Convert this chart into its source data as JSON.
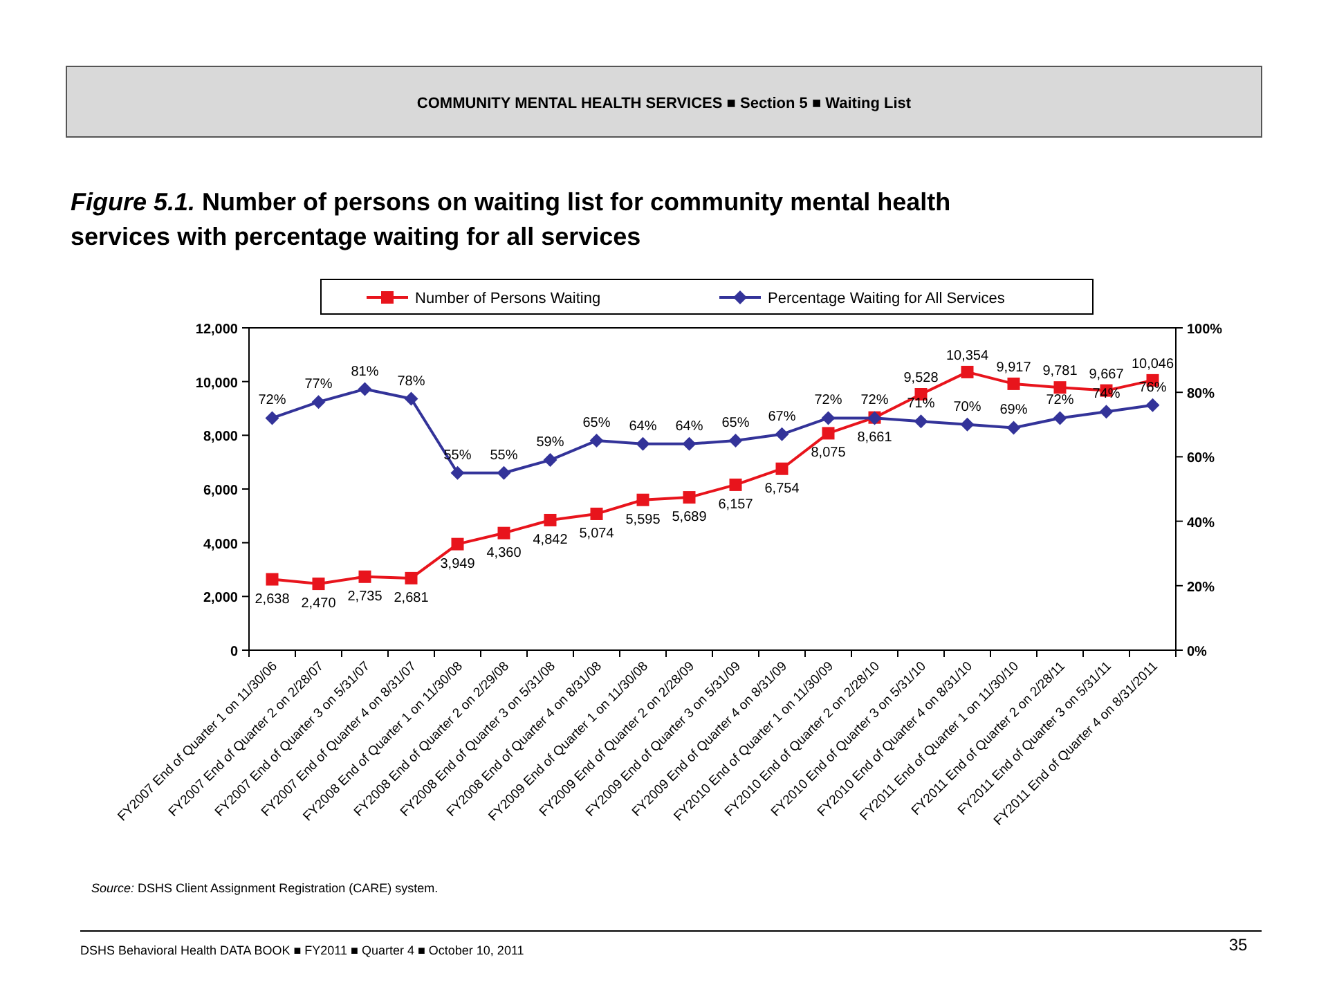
{
  "chart_data": {
    "type": "line",
    "title": "Figure 5.1. Number of persons on waiting list for community mental health services with percentage waiting for all services",
    "annotations": [
      "COMMUNITY MENTAL HEALTH SERVICES ■ Section 5 ■ Waiting List",
      "Source: DSHS Client Assignment Registration (CARE) system.",
      "DSHS Behavioral Health DATA BOOK ■ FY2011 ■ Quarter 4 ■ October 10, 2011",
      "35"
    ],
    "categories": [
      "FY2007 End of Quarter 1 on 11/30/06",
      "FY2007 End of Quarter 2 on 2/28/07",
      "FY2007 End of Quarter 3 on 5/31/07",
      "FY2007 End of Quarter 4 on 8/31/07",
      "FY2008 End of Quarter 1 on 11/30/08",
      "FY2008 End of Quarter 2 on 2/29/08",
      "FY2008 End of Quarter 3 on 5/31/08",
      "FY2008 End of Quarter 4 on 8/31/08",
      "FY2009 End of Quarter 1 on 11/30/08",
      "FY2009 End of Quarter 2 on 2/28/09",
      "FY2009 End of Quarter 3 on 5/31/09",
      "FY2009 End of Quarter 4 on 8/31/09",
      "FY2010 End of Quarter 1 on 11/30/09",
      "FY2010 End of Quarter 2 on 2/28/10",
      "FY2010 End of Quarter 3 on 5/31/10",
      "FY2010 End of Quarter 4 on 8/31/10",
      "FY2011 End of Quarter 1 on 11/30/10",
      "FY2011 End of Quarter 2 on 2/28/11",
      "FY2011 End of Quarter 3 on 5/31/11",
      "FY2011 End of Quarter 4 on 8/31/2011"
    ],
    "series": [
      {
        "name": "Number of Persons Waiting",
        "color": "#e8141c",
        "marker": "square",
        "values": [
          2638,
          2470,
          2735,
          2681,
          3949,
          4360,
          4842,
          5074,
          5595,
          5689,
          6157,
          6754,
          8075,
          8661,
          9528,
          10354,
          9917,
          9781,
          9667,
          10046
        ],
        "value_labels": [
          "2,638",
          "2,470",
          "2,735",
          "2,681",
          "3,949",
          "4,360",
          "4,842",
          "5,074",
          "5,595",
          "5,689",
          "6,157",
          "6,754",
          "8,075",
          "8,661",
          "9,528",
          "10,354",
          "9,917",
          "9,781",
          "9,667",
          "10,046"
        ]
      },
      {
        "name": "Percentage Waiting for All Services",
        "color": "#333399",
        "marker": "diamond",
        "axis": "y2",
        "values": [
          72,
          77,
          81,
          78,
          55,
          55,
          59,
          65,
          64,
          64,
          65,
          67,
          72,
          72,
          71,
          70,
          69,
          72,
          74,
          76
        ],
        "value_labels": [
          "72%",
          "77%",
          "81%",
          "78%",
          "55%",
          "55%",
          "59%",
          "65%",
          "64%",
          "64%",
          "65%",
          "67%",
          "72%",
          "72%",
          "71%",
          "70%",
          "69%",
          "72%",
          "74%",
          "76%"
        ]
      }
    ],
    "ylim": [
      0,
      12000
    ],
    "yticks": [
      0,
      {
        "value": 2000,
        "label": "2,000"
      },
      {
        "value": 4000,
        "label": "4,000"
      },
      {
        "value": 6000,
        "label": "6,000"
      },
      {
        "value": 8000,
        "label": "8,000"
      },
      {
        "value": 10000,
        "label": "10,000"
      },
      {
        "value": 12000,
        "label": "12,000"
      }
    ],
    "y2lim": [
      0,
      100
    ],
    "y2ticks": [
      {
        "value": 0,
        "label": "0%"
      },
      {
        "value": 20,
        "label": "20%"
      },
      {
        "value": 40,
        "label": "40%"
      },
      {
        "value": 60,
        "label": "60%"
      },
      {
        "value": 80,
        "label": "80%"
      },
      {
        "value": 100,
        "label": "100%"
      }
    ],
    "legend": "top",
    "grid": false,
    "line_style": "solid"
  }
}
